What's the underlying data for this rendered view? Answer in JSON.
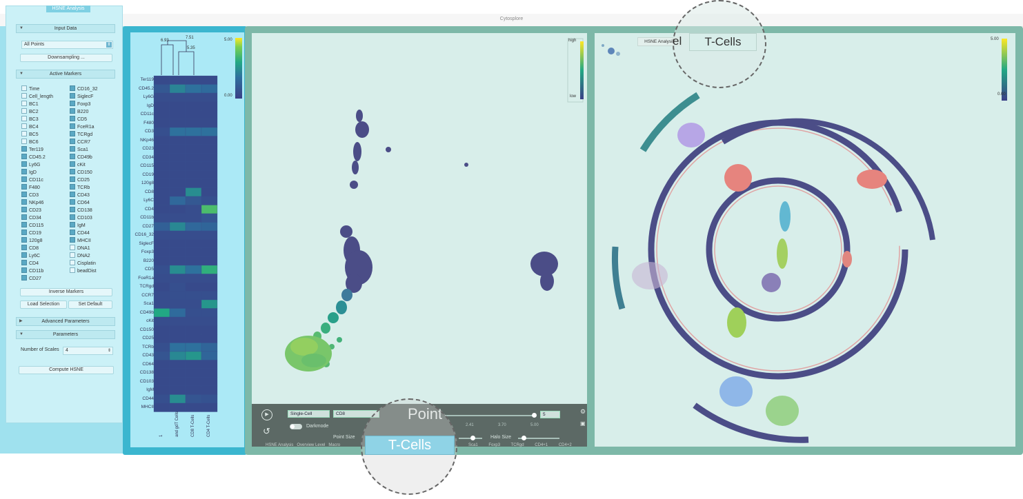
{
  "window": {
    "title": "Cytosplore"
  },
  "left_panel": {
    "tab": "HSNE Analysis",
    "input_data": {
      "header": "Input Data",
      "dataset_select": "All Points",
      "downsampling_button": "Downsampling ..."
    },
    "active_markers": {
      "header": "Active Markers",
      "col1": [
        {
          "name": "Time",
          "checked": false
        },
        {
          "name": "Cell_length",
          "checked": false
        },
        {
          "name": "BC1",
          "checked": false
        },
        {
          "name": "BC2",
          "checked": false
        },
        {
          "name": "BC3",
          "checked": false
        },
        {
          "name": "BC4",
          "checked": false
        },
        {
          "name": "BC5",
          "checked": false
        },
        {
          "name": "BC6",
          "checked": false
        },
        {
          "name": "Ter119",
          "checked": true
        },
        {
          "name": "CD45.2",
          "checked": true
        },
        {
          "name": "Ly6G",
          "checked": true
        },
        {
          "name": "IgD",
          "checked": true
        },
        {
          "name": "CD11c",
          "checked": true
        },
        {
          "name": "F480",
          "checked": true
        },
        {
          "name": "CD3",
          "checked": true
        },
        {
          "name": "NKp46",
          "checked": true
        },
        {
          "name": "CD23",
          "checked": true
        },
        {
          "name": "CD34",
          "checked": true
        },
        {
          "name": "CD115",
          "checked": true
        },
        {
          "name": "CD19",
          "checked": true
        },
        {
          "name": "120g8",
          "checked": true
        },
        {
          "name": "CD8",
          "checked": true
        },
        {
          "name": "Ly6C",
          "checked": true
        },
        {
          "name": "CD4",
          "checked": true
        },
        {
          "name": "CD11b",
          "checked": true
        },
        {
          "name": "CD27",
          "checked": true
        }
      ],
      "col2": [
        {
          "name": "CD16_32",
          "checked": true
        },
        {
          "name": "SiglecF",
          "checked": true
        },
        {
          "name": "Foxp3",
          "checked": true
        },
        {
          "name": "B220",
          "checked": true
        },
        {
          "name": "CD5",
          "checked": true
        },
        {
          "name": "FceR1a",
          "checked": true
        },
        {
          "name": "TCRgd",
          "checked": true
        },
        {
          "name": "CCR7",
          "checked": true
        },
        {
          "name": "Sca1",
          "checked": true
        },
        {
          "name": "CD49b",
          "checked": true
        },
        {
          "name": "cKit",
          "checked": true
        },
        {
          "name": "CD150",
          "checked": true
        },
        {
          "name": "CD25",
          "checked": true
        },
        {
          "name": "TCRb",
          "checked": true
        },
        {
          "name": "CD43",
          "checked": true
        },
        {
          "name": "CD64",
          "checked": true
        },
        {
          "name": "CD138",
          "checked": true
        },
        {
          "name": "CD103",
          "checked": true
        },
        {
          "name": "IgM",
          "checked": true
        },
        {
          "name": "CD44",
          "checked": true
        },
        {
          "name": "MHCII",
          "checked": true
        },
        {
          "name": "DNA1",
          "checked": false
        },
        {
          "name": "DNA2",
          "checked": false
        },
        {
          "name": "Cisplatin",
          "checked": false
        },
        {
          "name": "beadDist",
          "checked": false
        }
      ],
      "inverse_button": "Inverse Markers",
      "load_button": "Load Selection",
      "default_button": "Set Default"
    },
    "advanced_header": "Advanced Parameters",
    "parameters": {
      "header": "Parameters",
      "scales_label": "Number of Scales",
      "scales_value": "4",
      "compute_button": "Compute HSNE"
    }
  },
  "heatmap": {
    "dendrogram_labels": [
      "6.93",
      "7.51",
      "5.35"
    ],
    "colorbar_max": "5.00",
    "colorbar_min": "0.00",
    "rows": [
      "Ter119",
      "CD45.2",
      "Ly6G",
      "IgD",
      "CD11c",
      "F480",
      "CD3",
      "NKp46",
      "CD23",
      "CD34",
      "CD115",
      "CD19",
      "120g8",
      "CD8",
      "Ly6C",
      "CD4",
      "CD11b",
      "CD27",
      "CD16_32",
      "SiglecF",
      "Foxp3",
      "B220",
      "CD5",
      "FceR1a",
      "TCRgd",
      "CCR7",
      "Sca1",
      "CD49b",
      "cKit",
      "CD150",
      "CD25",
      "TCRb",
      "CD43",
      "CD64",
      "CD138",
      "CD103",
      "IgM",
      "CD44",
      "MHCII"
    ],
    "columns": [
      "1",
      "and gdT Cells",
      "CD8 T-Cells",
      "CD4 T-Cells"
    ],
    "values": [
      [
        0.4,
        0.4,
        0.4,
        0.4
      ],
      [
        0.9,
        2.2,
        1.8,
        1.6
      ],
      [
        0.5,
        0.5,
        0.5,
        0.5
      ],
      [
        0.4,
        0.4,
        0.4,
        0.4
      ],
      [
        0.4,
        0.4,
        0.4,
        0.4
      ],
      [
        0.4,
        0.4,
        0.4,
        0.4
      ],
      [
        0.6,
        1.8,
        1.8,
        1.8
      ],
      [
        0.4,
        0.4,
        0.4,
        0.4
      ],
      [
        0.4,
        0.4,
        0.4,
        0.4
      ],
      [
        0.4,
        0.4,
        0.4,
        0.4
      ],
      [
        0.4,
        0.4,
        0.4,
        0.4
      ],
      [
        0.4,
        0.4,
        0.4,
        0.4
      ],
      [
        0.4,
        0.4,
        0.4,
        0.4
      ],
      [
        0.4,
        0.4,
        2.4,
        0.4
      ],
      [
        0.4,
        1.5,
        0.9,
        0.6
      ],
      [
        0.4,
        0.4,
        0.5,
        3.6
      ],
      [
        0.5,
        0.5,
        0.5,
        0.8
      ],
      [
        1.2,
        2.3,
        1.5,
        1.4
      ],
      [
        0.5,
        0.5,
        0.5,
        0.5
      ],
      [
        0.4,
        0.4,
        0.4,
        0.4
      ],
      [
        0.4,
        0.4,
        0.4,
        0.4
      ],
      [
        0.4,
        0.4,
        0.4,
        0.4
      ],
      [
        0.6,
        2.4,
        1.8,
        3.2
      ],
      [
        0.5,
        0.5,
        0.5,
        0.5
      ],
      [
        0.4,
        0.6,
        0.4,
        0.4
      ],
      [
        0.5,
        0.6,
        0.6,
        0.6
      ],
      [
        0.5,
        0.5,
        0.5,
        2.6
      ],
      [
        3.0,
        1.6,
        0.6,
        0.6
      ],
      [
        0.5,
        0.5,
        0.5,
        0.5
      ],
      [
        0.4,
        0.4,
        0.4,
        0.4
      ],
      [
        0.4,
        0.4,
        0.4,
        0.4
      ],
      [
        0.6,
        1.8,
        1.8,
        1.4
      ],
      [
        0.8,
        2.3,
        2.6,
        1.4
      ],
      [
        0.4,
        0.4,
        0.4,
        0.4
      ],
      [
        0.4,
        0.4,
        0.4,
        0.4
      ],
      [
        0.4,
        0.4,
        0.4,
        0.4
      ],
      [
        0.4,
        0.4,
        0.4,
        0.4
      ],
      [
        0.6,
        2.4,
        0.8,
        0.7
      ],
      [
        0.4,
        0.4,
        0.4,
        0.4
      ]
    ]
  },
  "scatter": {
    "legend_high": "high",
    "legend_low": "low"
  },
  "toolbar": {
    "mode_select": "Single-Cell",
    "marker_select": "CD8",
    "magnified_text": "Point",
    "range_value": "5",
    "range_ticks": [
      "2.41",
      "3.70",
      "5.00"
    ],
    "darkmode_label": "Darkmode",
    "point_size_label": "Point Size",
    "halo_size_label": "Halo Size",
    "bottom_tabs": [
      "HSNE Analysis",
      "Overview Level",
      "Macro"
    ],
    "bottom_tabs_right": [
      "Sca1",
      "Foxp3",
      "TCRgd",
      "CD4+1",
      "CD4+2"
    ],
    "magnified_tab": "T-Cells"
  },
  "hsne_view": {
    "breadcrumb_root": "HSNE Analysis",
    "breadcrumb_partial": "el",
    "breadcrumb_current": "T-Cells",
    "colorbar_max": "5.00",
    "colorbar_min": "0.00"
  },
  "colors": {
    "accent_cyan": "#3bb6cf",
    "panel_green": "#7db8a8",
    "cluster_purple": "#4b4d87",
    "cluster_green": "#79c66a"
  }
}
